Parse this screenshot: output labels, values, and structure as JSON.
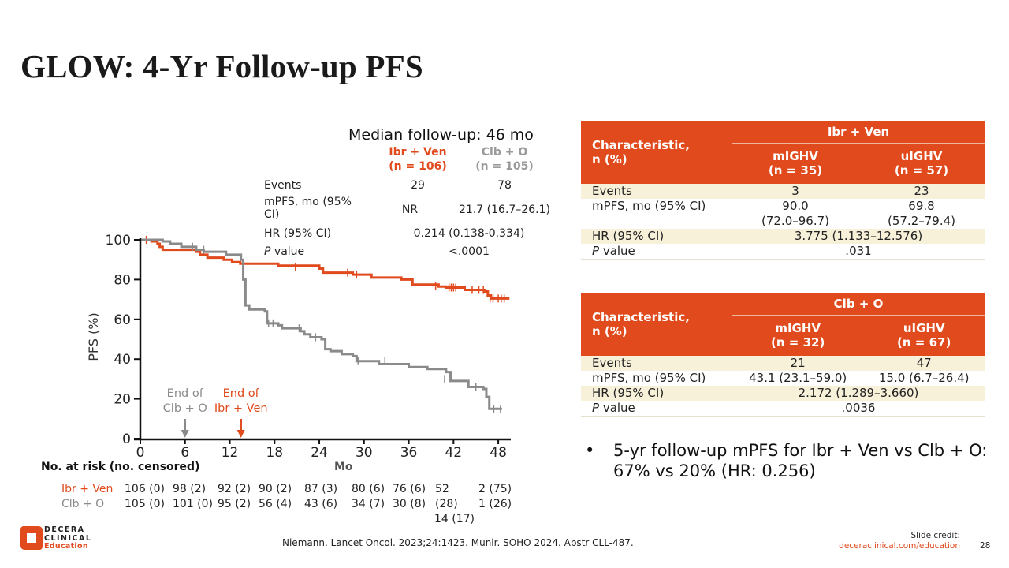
{
  "slide": {
    "title": "GLOW: 4-Yr Follow-up PFS",
    "page_number": "28",
    "citation": "Niemann. Lancet Oncol. 2023;24:1423. Munir. SOHO 2024. Abstr CLL-487.",
    "credit_label": "Slide credit:",
    "credit_link": "deceraclinical.com/education",
    "logo": {
      "line1": "DECERA",
      "line2": "CLINICAL",
      "line3": "Education",
      "icon": "decera-logo-icon"
    },
    "colors": {
      "accent": "#e04a1c",
      "gray": "#8a8a8a",
      "stripe": "#f8f1da"
    }
  },
  "summary": {
    "median_followup": "Median follow-up: 46 mo",
    "arm1": {
      "name": "Ibr + Ven",
      "n": "(n = 106)"
    },
    "arm2": {
      "name": "Clb + O",
      "n": "(n = 105)"
    },
    "rows": [
      {
        "label": "Events",
        "arm1": "29",
        "arm2": "78"
      },
      {
        "label_a": "mPFS, mo (95%",
        "label_b": "CI)",
        "arm1": "NR",
        "arm2": "21.7 (16.7–26.1)"
      },
      {
        "label": "HR (95% CI)",
        "combined": "0.214 (0.138-0.334)"
      },
      {
        "label_i": "P",
        "label_rest": " value",
        "combined": "<.0001"
      }
    ]
  },
  "chart_data": {
    "type": "line",
    "subtype": "kaplan-meier",
    "title": "",
    "xlabel": "Mo",
    "ylabel": "PFS (%)",
    "xlim": [
      0,
      50
    ],
    "ylim": [
      0,
      100
    ],
    "xticks": [
      "0",
      "6",
      "12",
      "18",
      "24",
      "30",
      "36",
      "42",
      "48"
    ],
    "yticks": [
      "0",
      "20",
      "40",
      "60",
      "80",
      "100"
    ],
    "grid": false,
    "annotations": [
      {
        "text_a": "End of",
        "text_b": "Clb + O",
        "x": 6,
        "color": "#8a8a8a"
      },
      {
        "text_a": "End of",
        "text_b": "Ibr + Ven",
        "x": 13.5,
        "color": "#e04a1c"
      }
    ],
    "series": [
      {
        "name": "Ibr + Ven",
        "color": "#e04a1c",
        "steps": [
          [
            0,
            100
          ],
          [
            1.5,
            99.2
          ],
          [
            2.3,
            98
          ],
          [
            2.6,
            96.5
          ],
          [
            3.0,
            95
          ],
          [
            7.5,
            94
          ],
          [
            8.0,
            92.5
          ],
          [
            9.0,
            91
          ],
          [
            11.2,
            90
          ],
          [
            12.3,
            88.8
          ],
          [
            13.4,
            88
          ],
          [
            18.5,
            87
          ],
          [
            24.0,
            85.5
          ],
          [
            24.5,
            83.5
          ],
          [
            28.5,
            82.5
          ],
          [
            31.0,
            81
          ],
          [
            35.0,
            80
          ],
          [
            36.5,
            77.5
          ],
          [
            40.0,
            76.5
          ],
          [
            41.0,
            76
          ],
          [
            43.5,
            74.8
          ],
          [
            46.2,
            74
          ],
          [
            46.6,
            72
          ],
          [
            47.0,
            70.5
          ],
          [
            49.5,
            70.5
          ]
        ],
        "censors": [
          [
            0.8,
            100
          ],
          [
            20.8,
            86.5
          ],
          [
            27.8,
            83.5
          ],
          [
            29.0,
            82.5
          ],
          [
            39.6,
            77
          ],
          [
            41.4,
            76
          ],
          [
            41.7,
            76
          ],
          [
            42.0,
            76
          ],
          [
            42.3,
            76
          ],
          [
            44.5,
            74.8
          ],
          [
            45.4,
            74.8
          ],
          [
            46.0,
            74.8
          ],
          [
            46.9,
            70.5
          ],
          [
            47.3,
            70.5
          ],
          [
            48.0,
            70.5
          ],
          [
            48.4,
            70.5
          ],
          [
            48.8,
            70.5
          ]
        ]
      },
      {
        "name": "Clb + O",
        "color": "#8a8a8a",
        "steps": [
          [
            0,
            100
          ],
          [
            3.0,
            99.2
          ],
          [
            4.0,
            98
          ],
          [
            5.5,
            96.5
          ],
          [
            7.5,
            95
          ],
          [
            8.5,
            94
          ],
          [
            11.5,
            92.5
          ],
          [
            13.5,
            90
          ],
          [
            13.8,
            80
          ],
          [
            14.1,
            67
          ],
          [
            14.6,
            65
          ],
          [
            16.7,
            64
          ],
          [
            17.0,
            58
          ],
          [
            18.5,
            57
          ],
          [
            19.0,
            55.5
          ],
          [
            21.5,
            54
          ],
          [
            22.0,
            52.5
          ],
          [
            22.8,
            51
          ],
          [
            24.3,
            50
          ],
          [
            24.8,
            45
          ],
          [
            25.5,
            44
          ],
          [
            27.0,
            42.5
          ],
          [
            28.5,
            41.5
          ],
          [
            29.0,
            39
          ],
          [
            32.0,
            37.5
          ],
          [
            36.0,
            36
          ],
          [
            38.5,
            35
          ],
          [
            41.0,
            33.5
          ],
          [
            41.6,
            29
          ],
          [
            44.0,
            26
          ],
          [
            46.0,
            25
          ],
          [
            46.4,
            21
          ],
          [
            46.8,
            15
          ],
          [
            48.5,
            15
          ]
        ],
        "censors": [
          [
            7.0,
            96.5
          ],
          [
            8.5,
            95
          ],
          [
            17.2,
            58
          ],
          [
            17.8,
            58
          ],
          [
            21.3,
            55.5
          ],
          [
            23.5,
            51
          ],
          [
            29.2,
            39
          ],
          [
            32.8,
            39
          ],
          [
            40.8,
            30
          ],
          [
            45.0,
            26
          ],
          [
            47.4,
            15
          ],
          [
            48.3,
            15
          ]
        ]
      }
    ],
    "at_risk": {
      "title": "No. at risk (no. censored)",
      "rows": [
        {
          "name": "Ibr + Ven",
          "values": [
            "106 (0)",
            "98 (2)",
            "92 (2)",
            "90 (2)",
            "87 (3)",
            "80 (6)",
            "76 (6)",
            "52",
            "2 (75)"
          ]
        },
        {
          "name": "Clb + O",
          "values": [
            "105 (0)",
            "101 (0)",
            "95 (2)",
            "56 (4)",
            "43 (6)",
            "34 (7)",
            "30 (8)",
            "(28)",
            "1 (26)"
          ],
          "extra": "14 (17)"
        }
      ]
    }
  },
  "table_ibr": {
    "char_label_a": "Characteristic,",
    "char_label_b": "n (%)",
    "group": "Ibr + Ven",
    "col1": {
      "name": "mIGHV",
      "n": "(n = 35)"
    },
    "col2": {
      "name": "uIGHV",
      "n": "(n = 57)"
    },
    "events": {
      "label": "Events",
      "c1": "3",
      "c2": "23"
    },
    "mpfs": {
      "label": "mPFS, mo (95% CI)",
      "c1a": "90.0",
      "c1b": "(72.0–96.7)",
      "c2a": "69.8",
      "c2b": "(57.2–79.4)"
    },
    "hr": {
      "label": "HR (95% CI)",
      "value": "3.775 (1.133–12.576)"
    },
    "p": {
      "label_i": "P",
      "label_rest": " value",
      "value": ".031"
    }
  },
  "table_clb": {
    "char_label_a": "Characteristic,",
    "char_label_b": "n (%)",
    "group": "Clb + O",
    "col1": {
      "name": "mIGHV",
      "n": "(n = 32)"
    },
    "col2": {
      "name": "uIGHV",
      "n": "(n = 67)"
    },
    "events": {
      "label": "Events",
      "c1": "21",
      "c2": "47"
    },
    "mpfs": {
      "label": "mPFS, mo (95% CI)",
      "c1": "43.1 (23.1–59.0)",
      "c2": "15.0 (6.7–26.4)"
    },
    "hr": {
      "label": "HR (95% CI)",
      "value": "2.172 (1.289–3.660)"
    },
    "p": {
      "label_i": "P",
      "label_rest": " value",
      "value": ".0036"
    }
  },
  "bullet": {
    "marker": "•",
    "text": "5-yr follow-up mPFS for Ibr + Ven vs Clb + O: 67% vs 20% (HR: 0.256)"
  }
}
